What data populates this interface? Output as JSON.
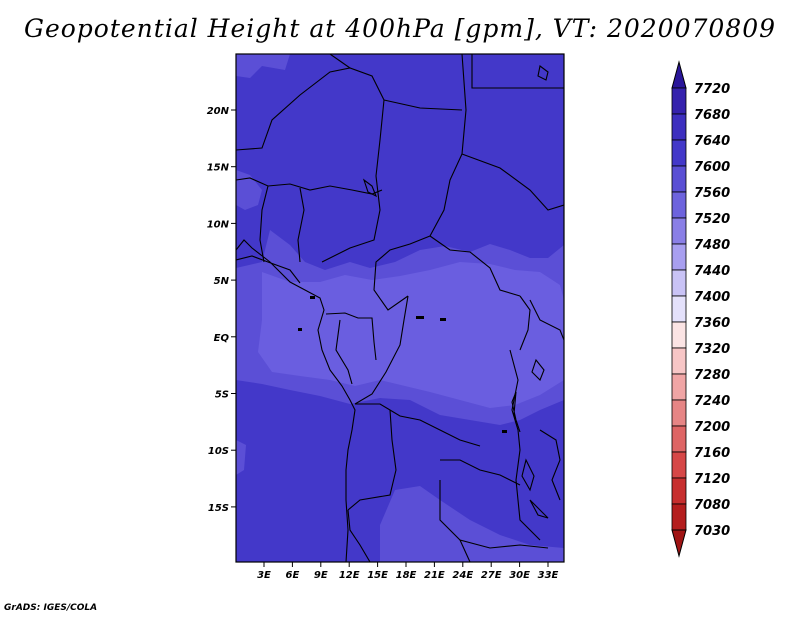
{
  "title": "Geopotential Height at 400hPa [gpm], VT: 2020070809",
  "credit": "GrADS: IGES/COLA",
  "map": {
    "lon_ticks": [
      "3E",
      "6E",
      "9E",
      "12E",
      "15E",
      "18E",
      "21E",
      "24E",
      "27E",
      "30E",
      "33E"
    ],
    "lat_ticks": [
      "20N",
      "15N",
      "10N",
      "5N",
      "EQ",
      "5S",
      "10S",
      "15S"
    ],
    "field_colors": {
      "high": "#4338c9",
      "mid": "#5b4fd6",
      "low": "#6a5ee0"
    }
  },
  "colorbar": {
    "labels": [
      "7720",
      "7680",
      "7640",
      "7600",
      "7560",
      "7520",
      "7480",
      "7440",
      "7400",
      "7360",
      "7320",
      "7280",
      "7240",
      "7200",
      "7160",
      "7120",
      "7080",
      "7030"
    ],
    "colors": [
      "#2a169a",
      "#3522ad",
      "#3d2fbf",
      "#4338c9",
      "#5a4fd4",
      "#6d63dd",
      "#8a7fe6",
      "#a89ff0",
      "#c9c3f6",
      "#e4e1fb",
      "#fbe4e4",
      "#f7c6c6",
      "#f0a5a5",
      "#e68585",
      "#de6565",
      "#d64747",
      "#c72f2f",
      "#b41e1e",
      "#a01414"
    ]
  }
}
